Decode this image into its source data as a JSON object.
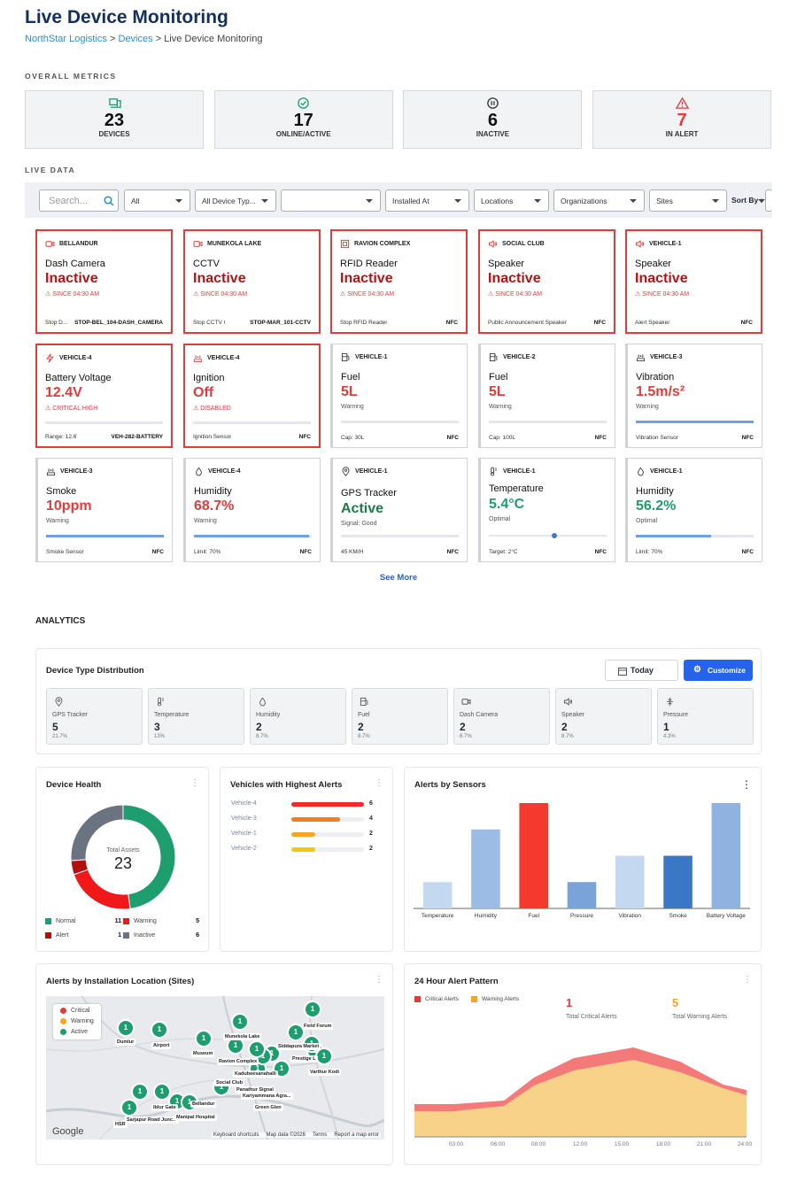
{
  "header": {
    "title": "Live Device Monitoring",
    "crumb1": "NorthStar Logistics",
    "sep": ">",
    "crumb2": "Devices",
    "crumb3": "Live Device Monitoring"
  },
  "sections": {
    "overall": "OVERALL METRICS",
    "live": "LIVE DATA",
    "analytics": "ANALYTICS"
  },
  "metrics": [
    {
      "value": "23",
      "label": "DEVICES",
      "icon": "devices-icon",
      "color": "#1e9e6e"
    },
    {
      "value": "17",
      "label": "ONLINE/ACTIVE",
      "icon": "check-circle-icon",
      "color": "#1e9e6e"
    },
    {
      "value": "6",
      "label": "INACTIVE",
      "icon": "pause-circle-icon",
      "color": "#333"
    },
    {
      "value": "7",
      "label": "IN ALERT",
      "icon": "warning-icon",
      "color": "#e03c3c"
    }
  ],
  "filters": {
    "search_placeholder": "Search...",
    "all": "All",
    "device_type": "All Device Typ...",
    "blank": "",
    "installed": "Installed At",
    "locations": "Locations",
    "organizations": "Organizations",
    "sites": "Sites",
    "sort_by": "Sort By :"
  },
  "cards": [
    {
      "loc": "BELLANDUR",
      "name": "Dash Camera",
      "value": "Inactive",
      "sub": "⚠ SINCE 04:30 AM",
      "foot_l": "Stop D...",
      "foot_r": "STOP-BEL_104-DASH_CAMERA",
      "icon": "camera-icon"
    },
    {
      "loc": "MUNEKOLA LAKE",
      "name": "CCTV",
      "value": "Inactive",
      "sub": "⚠ SINCE 04:30 AM",
      "foot_l": "Stop CCTV Cam...",
      "foot_r": "STOP-MAR_101-CCTV",
      "icon": "camera-icon"
    },
    {
      "loc": "RAVION COMPLEX",
      "name": "RFID Reader",
      "value": "Inactive",
      "sub": "⚠ SINCE 04:30 AM",
      "foot_l": "Stop RFID Reader",
      "foot_r": "NFC",
      "icon": "rfid-icon"
    },
    {
      "loc": "SOCIAL CLUB",
      "name": "Speaker",
      "value": "Inactive",
      "sub": "⚠ SINCE 04:30 AM",
      "foot_l": "Public Announcement Speaker",
      "foot_r": "NFC",
      "icon": "speaker-icon"
    },
    {
      "loc": "VEHICLE-1",
      "name": "Speaker",
      "value": "Inactive",
      "sub": "⚠ SINCE 04:30 AM",
      "foot_l": "Alert Speaker",
      "foot_r": "NFC",
      "icon": "speaker-icon"
    },
    {
      "loc": "VEHICLE-4",
      "name": "Battery Voltage",
      "value": "12.4V",
      "sub": "⚠ CRITICAL HIGH",
      "foot_l": "Range: 12.6V+",
      "foot_r": "VEH-282-BATTERY",
      "icon": "bolt-icon",
      "bar": 0
    },
    {
      "loc": "VEHICLE-4",
      "name": "Ignition",
      "value": "Off",
      "sub": "⚠ DISABLED",
      "foot_l": "Ignition Sensor",
      "foot_r": "NFC",
      "icon": "antenna-icon",
      "bar": 0
    },
    {
      "loc": "VEHICLE-1",
      "name": "Fuel",
      "value": "5L",
      "sub": "Warning",
      "foot_l": "Cap: 30L",
      "foot_r": "NFC",
      "icon": "fuel-icon",
      "bar": 0
    },
    {
      "loc": "VEHICLE-2",
      "name": "Fuel",
      "value": "5L",
      "sub": "Warning",
      "foot_l": "Cap: 100L",
      "foot_r": "NFC",
      "icon": "fuel-icon",
      "bar": 0
    },
    {
      "loc": "VEHICLE-3",
      "name": "Vibration",
      "value": "1.5m/s²",
      "sub": "Warning",
      "foot_l": "Vibration Sensor",
      "foot_r": "NFC",
      "icon": "antenna-icon",
      "bar": 1
    },
    {
      "loc": "VEHICLE-3",
      "name": "Smoke",
      "value": "10ppm",
      "sub": "Warning",
      "foot_l": "Smoke Sensor",
      "foot_r": "NFC",
      "icon": "antenna-icon",
      "bar": 1
    },
    {
      "loc": "VEHICLE-4",
      "name": "Humidity",
      "value": "68.7%",
      "sub": "Warning",
      "foot_l": "Limit: 70%",
      "foot_r": "NFC",
      "icon": "drop-icon",
      "bar": 0.98
    },
    {
      "loc": "VEHICLE-1",
      "name": "GPS Tracker",
      "value": "Active",
      "sub": "Signal: Good",
      "foot_l": "45 KM/H",
      "foot_r": "NFC",
      "icon": "pin-icon",
      "bar": 0
    },
    {
      "loc": "VEHICLE-1",
      "name": "Temperature",
      "value": "5.4°C",
      "sub": "Optimal",
      "foot_l": "Target: 2°C",
      "foot_r": "NFC",
      "icon": "thermometer-icon",
      "slider": 0.56
    },
    {
      "loc": "VEHICLE-1",
      "name": "Humidity",
      "value": "56.2%",
      "sub": "Optimal",
      "foot_l": "Limit: 70%",
      "foot_r": "NFC",
      "icon": "drop-icon",
      "bar": 0.64
    }
  ],
  "see_more": "See More",
  "distribution": {
    "title": "Device Type Distribution",
    "today": "Today",
    "customize": "Customize",
    "items": [
      {
        "label": "GPS Tracker",
        "count": "5",
        "pct": "21.7%",
        "icon": "pin-icon"
      },
      {
        "label": "Temperature",
        "count": "3",
        "pct": "13%",
        "icon": "thermometer-icon"
      },
      {
        "label": "Humidity",
        "count": "2",
        "pct": "8.7%",
        "icon": "drop-icon"
      },
      {
        "label": "Fuel",
        "count": "2",
        "pct": "8.7%",
        "icon": "fuel-icon"
      },
      {
        "label": "Dash Camera",
        "count": "2",
        "pct": "8.7%",
        "icon": "camera-icon"
      },
      {
        "label": "Speaker",
        "count": "2",
        "pct": "8.7%",
        "icon": "speaker-icon"
      },
      {
        "label": "Pressure",
        "count": "1",
        "pct": "4.3%",
        "icon": "pressure-icon"
      }
    ]
  },
  "health": {
    "title": "Device Health",
    "center_label": "Total Assets",
    "center_value": "23",
    "legend": [
      {
        "name": "Normal",
        "value": "11",
        "color": "#1e9e6e"
      },
      {
        "name": "Warning",
        "value": "5",
        "color": "#f01818"
      },
      {
        "name": "Alert",
        "value": "1",
        "color": "#b01010"
      },
      {
        "name": "Inactive",
        "value": "6",
        "color": "#6b7280"
      }
    ]
  },
  "vehicles": {
    "title": "Vehicles with Highest Alerts",
    "rows": [
      {
        "name": "Vehicle-4",
        "value": "6",
        "frac": 1,
        "color": "#ee2b2b"
      },
      {
        "name": "Vehicle-3",
        "value": "4",
        "frac": 0.67,
        "color": "#f57c1f"
      },
      {
        "name": "Vehicle-1",
        "value": "2",
        "frac": 0.33,
        "color": "#f5a51f"
      },
      {
        "name": "Vehicle-2",
        "value": "2",
        "frac": 0.33,
        "color": "#f5c518"
      }
    ]
  },
  "chart_data": {
    "type": "bar",
    "title": "Alerts by Sensors",
    "categories": [
      "Temperature",
      "Humidity",
      "Fuel",
      "Pressure",
      "Vibration",
      "Smoke",
      "Battery Voltage"
    ],
    "values": [
      1,
      3,
      4,
      1,
      2,
      2,
      4
    ],
    "colors": [
      "#c4d8f0",
      "#9cbce6",
      "#f43a2e",
      "#7aa3d8",
      "#c4d8f0",
      "#3a78c6",
      "#8fb2e0"
    ],
    "ylim": [
      0,
      4
    ]
  },
  "map": {
    "title": "Alerts by Installation Location (Sites)",
    "legend": [
      {
        "name": "Critical",
        "color": "#e03c3c"
      },
      {
        "name": "Warning",
        "color": "#f5a51f"
      },
      {
        "name": "Active",
        "color": "#1e9e6e"
      }
    ],
    "labels": [
      "Dumlur",
      "Airport",
      "Museum",
      "Munekola Lake",
      "Field Forum",
      "Siddapura Market",
      "Prestige L",
      "Varthur Kodi",
      "Kadubeesanahalli",
      "Social Club",
      "Panathur Signal",
      "Kariyammana Agra...",
      "Green Glen",
      "Bellandur",
      "Iblur Gate",
      "Sarjapur Road Junc...",
      "HSR",
      "Ravion Complex",
      "Manipal Hospital"
    ],
    "google": "Google",
    "shortcuts": "Keyboard shortcuts",
    "mapdata": "Map data ©2026",
    "terms": "Terms",
    "report": "Report a map error"
  },
  "pattern": {
    "title": "24 Hour Alert Pattern",
    "legend_critical": "Critical Alerts",
    "legend_warning": "Warning Alerts",
    "critical_total": "1",
    "critical_label": "Total Critical Alerts",
    "warning_total": "5",
    "warning_label": "Total Warning Alerts",
    "x": [
      "03:00",
      "06:00",
      "08:00",
      "12:00",
      "15:00",
      "18:00",
      "21:00",
      "24:00"
    ]
  }
}
